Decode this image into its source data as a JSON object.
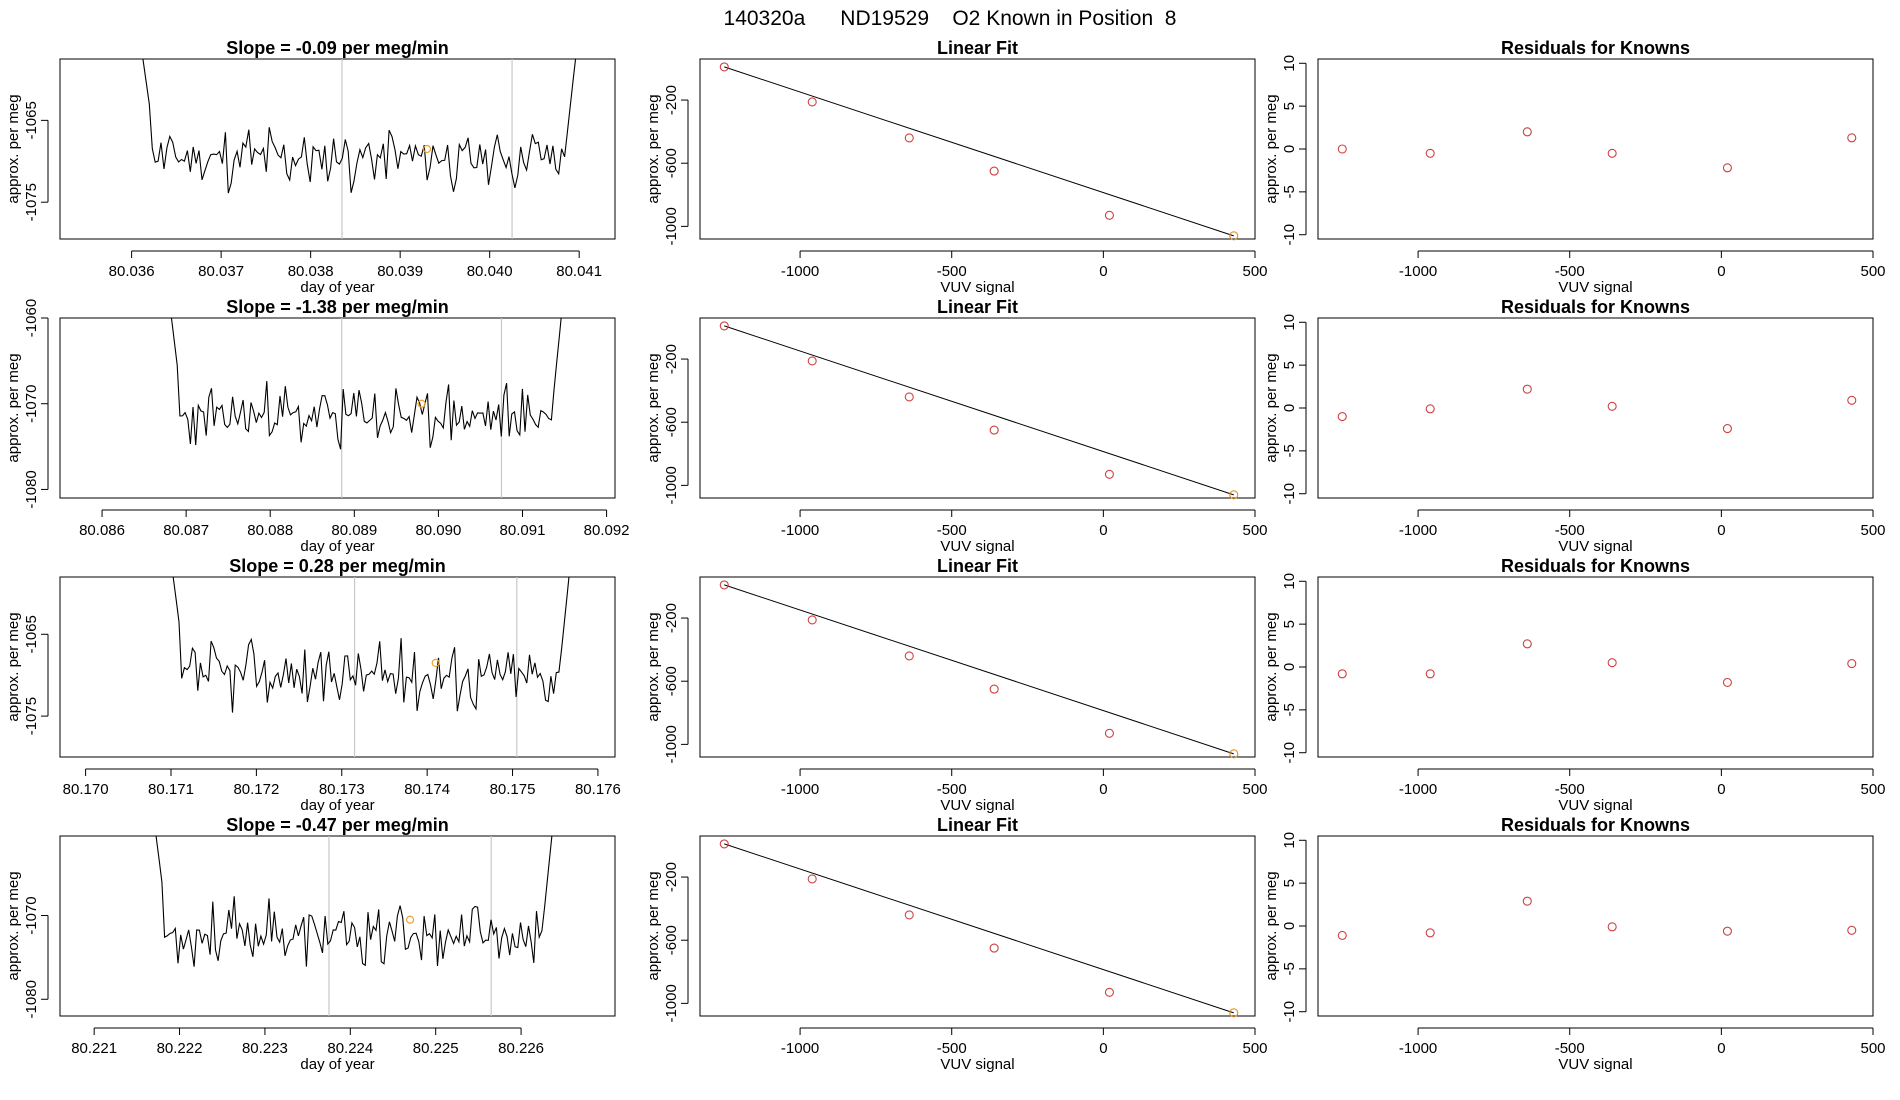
{
  "figure_title": "140320a      ND19529    O2 Known in Position  8",
  "chart_data": [
    {
      "row": 0,
      "timeseries": {
        "type": "line",
        "title": "Slope =  -0.09  per meg/min",
        "xlabel": "day of year",
        "ylabel": "approx. per meg",
        "xlim": [
          80.0352,
          80.0414
        ],
        "ylim": [
          -1079.5,
          -1057.5
        ],
        "xticks": [
          80.036,
          80.037,
          80.038,
          80.039,
          80.04,
          80.041
        ],
        "xtick_labels": [
          "80.036",
          "80.037",
          "80.038",
          "80.039",
          "80.040",
          "80.041"
        ],
        "yticks": [
          -1065,
          -1075
        ],
        "ytick_labels": [
          "-1065",
          "-1075"
        ],
        "vlines": [
          80.03835,
          80.04025
        ],
        "x_start": 80.0361,
        "x_end": 80.041,
        "noise_seed": 11,
        "highlight_point": {
          "x": 80.0393,
          "y": -1068.5
        }
      },
      "linear_fit": {
        "type": "scatter",
        "title": "Linear Fit",
        "xlabel": "VUV signal",
        "ylabel": "approx. per meg",
        "xlim": [
          -1330,
          500
        ],
        "ylim": [
          -1080,
          60
        ],
        "xticks": [
          -1000,
          -500,
          0,
          500
        ],
        "xtick_labels": [
          "-1000",
          "-500",
          "0",
          "500"
        ],
        "yticks": [
          -200,
          -600,
          -1000
        ],
        "ytick_labels": [
          "-200",
          "-600",
          "-1000"
        ],
        "x": [
          -1250,
          -960,
          -640,
          -360,
          20,
          430
        ],
        "y": [
          10,
          -212,
          -440,
          -650,
          -930,
          -1060
        ],
        "fit_line": {
          "x": [
            -1250,
            430
          ],
          "y": [
            10,
            -1060
          ]
        }
      },
      "residuals": {
        "type": "scatter",
        "title": "Residuals for Knowns",
        "xlabel": "VUV signal",
        "ylabel": "approx. per meg",
        "xlim": [
          -1330,
          500
        ],
        "ylim": [
          -10.5,
          10.5
        ],
        "xticks": [
          -1000,
          -500,
          0,
          500
        ],
        "xtick_labels": [
          "-1000",
          "-500",
          "0",
          "500"
        ],
        "yticks": [
          10,
          5,
          0,
          -5,
          -10
        ],
        "ytick_labels": [
          "10",
          "5",
          "0",
          "-5",
          "-10"
        ],
        "x": [
          -1250,
          -960,
          -640,
          -360,
          20,
          430
        ],
        "y": [
          0.0,
          -0.5,
          2.0,
          -0.5,
          -2.2,
          1.3
        ]
      }
    },
    {
      "row": 1,
      "timeseries": {
        "type": "line",
        "title": "Slope =  -1.38  per meg/min",
        "xlabel": "day of year",
        "ylabel": "approx. per meg",
        "xlim": [
          80.0855,
          80.0921
        ],
        "ylim": [
          -1081,
          -1060
        ],
        "xticks": [
          80.086,
          80.087,
          80.088,
          80.089,
          80.09,
          80.091,
          80.092
        ],
        "xtick_labels": [
          "80.086",
          "80.087",
          "80.088",
          "80.089",
          "80.090",
          "80.091",
          "80.092"
        ],
        "yticks": [
          -1060,
          -1070,
          -1080
        ],
        "ytick_labels": [
          "-1060",
          "-1070",
          "-1080"
        ],
        "vlines": [
          80.08885,
          80.09075
        ],
        "x_start": 80.0868,
        "x_end": 80.0915,
        "noise_seed": 23,
        "highlight_point": {
          "x": 80.0898,
          "y": -1070
        }
      },
      "linear_fit": {
        "type": "scatter",
        "title": "Linear Fit",
        "xlabel": "VUV signal",
        "ylabel": "approx. per meg",
        "xlim": [
          -1330,
          500
        ],
        "ylim": [
          -1080,
          60
        ],
        "xticks": [
          -1000,
          -500,
          0,
          500
        ],
        "xtick_labels": [
          "-1000",
          "-500",
          "0",
          "500"
        ],
        "yticks": [
          -200,
          -600,
          -1000
        ],
        "ytick_labels": [
          "-200",
          "-600",
          "-1000"
        ],
        "x": [
          -1250,
          -960,
          -640,
          -360,
          20,
          430
        ],
        "y": [
          10,
          -212,
          -440,
          -650,
          -930,
          -1060
        ],
        "fit_line": {
          "x": [
            -1250,
            430
          ],
          "y": [
            10,
            -1060
          ]
        }
      },
      "residuals": {
        "type": "scatter",
        "title": "Residuals for Knowns",
        "xlabel": "VUV signal",
        "ylabel": "approx. per meg",
        "xlim": [
          -1330,
          500
        ],
        "ylim": [
          -10.5,
          10.5
        ],
        "xticks": [
          -1000,
          -500,
          0,
          500
        ],
        "xtick_labels": [
          "-1000",
          "-500",
          "0",
          "500"
        ],
        "yticks": [
          10,
          5,
          0,
          -5,
          -10
        ],
        "ytick_labels": [
          "10",
          "5",
          "0",
          "-5",
          "-10"
        ],
        "x": [
          -1250,
          -960,
          -640,
          -360,
          20,
          430
        ],
        "y": [
          -1.0,
          -0.1,
          2.2,
          0.2,
          -2.4,
          0.9
        ]
      }
    },
    {
      "row": 2,
      "timeseries": {
        "type": "line",
        "title": "Slope =  0.28  per meg/min",
        "xlabel": "day of year",
        "ylabel": "approx. per meg",
        "xlim": [
          80.1697,
          80.1762
        ],
        "ylim": [
          -1080,
          -1058
        ],
        "xticks": [
          80.17,
          80.171,
          80.172,
          80.173,
          80.174,
          80.175,
          80.176
        ],
        "xtick_labels": [
          "80.170",
          "80.171",
          "80.172",
          "80.173",
          "80.174",
          "80.175",
          "80.176"
        ],
        "yticks": [
          -1065,
          -1075
        ],
        "ytick_labels": [
          "-1065",
          "-1075"
        ],
        "vlines": [
          80.17315,
          80.17505
        ],
        "x_start": 80.171,
        "x_end": 80.1757,
        "noise_seed": 37,
        "highlight_point": {
          "x": 80.1741,
          "y": -1068.5
        }
      },
      "linear_fit": {
        "type": "scatter",
        "title": "Linear Fit",
        "xlabel": "VUV signal",
        "ylabel": "approx. per meg",
        "xlim": [
          -1330,
          500
        ],
        "ylim": [
          -1080,
          60
        ],
        "xticks": [
          -1000,
          -500,
          0,
          500
        ],
        "xtick_labels": [
          "-1000",
          "-500",
          "0",
          "500"
        ],
        "yticks": [
          -200,
          -600,
          -1000
        ],
        "ytick_labels": [
          "-200",
          "-600",
          "-1000"
        ],
        "x": [
          -1250,
          -960,
          -640,
          -360,
          20,
          430
        ],
        "y": [
          10,
          -212,
          -440,
          -650,
          -930,
          -1060
        ],
        "fit_line": {
          "x": [
            -1250,
            430
          ],
          "y": [
            10,
            -1060
          ]
        }
      },
      "residuals": {
        "type": "scatter",
        "title": "Residuals for Knowns",
        "xlabel": "VUV signal",
        "ylabel": "approx. per meg",
        "xlim": [
          -1330,
          500
        ],
        "ylim": [
          -10.5,
          10.5
        ],
        "xticks": [
          -1000,
          -500,
          0,
          500
        ],
        "xtick_labels": [
          "-1000",
          "-500",
          "0",
          "500"
        ],
        "yticks": [
          10,
          5,
          0,
          -5,
          -10
        ],
        "ytick_labels": [
          "10",
          "5",
          "0",
          "-5",
          "-10"
        ],
        "x": [
          -1250,
          -960,
          -640,
          -360,
          20,
          430
        ],
        "y": [
          -0.8,
          -0.8,
          2.7,
          0.5,
          -1.8,
          0.4
        ]
      }
    },
    {
      "row": 3,
      "timeseries": {
        "type": "line",
        "title": "Slope =  -0.47  per meg/min",
        "xlabel": "day of year",
        "ylabel": "approx. per meg",
        "xlim": [
          80.2206,
          80.2271
        ],
        "ylim": [
          -1082,
          -1060.5
        ],
        "xticks": [
          80.221,
          80.222,
          80.223,
          80.224,
          80.225,
          80.226
        ],
        "xtick_labels": [
          "80.221",
          "80.222",
          "80.223",
          "80.224",
          "80.225",
          "80.226"
        ],
        "yticks": [
          -1070,
          -1080
        ],
        "ytick_labels": [
          "-1070",
          "-1080"
        ],
        "vlines": [
          80.22375,
          80.22565
        ],
        "x_start": 80.2217,
        "x_end": 80.2264,
        "noise_seed": 53,
        "highlight_point": {
          "x": 80.2247,
          "y": -1070.5
        }
      },
      "linear_fit": {
        "type": "scatter",
        "title": "Linear Fit",
        "xlabel": "VUV signal",
        "ylabel": "approx. per meg",
        "xlim": [
          -1330,
          500
        ],
        "ylim": [
          -1080,
          60
        ],
        "xticks": [
          -1000,
          -500,
          0,
          500
        ],
        "xtick_labels": [
          "-1000",
          "-500",
          "0",
          "500"
        ],
        "yticks": [
          -200,
          -600,
          -1000
        ],
        "ytick_labels": [
          "-200",
          "-600",
          "-1000"
        ],
        "x": [
          -1250,
          -960,
          -640,
          -360,
          20,
          430
        ],
        "y": [
          10,
          -212,
          -440,
          -650,
          -930,
          -1060
        ],
        "fit_line": {
          "x": [
            -1250,
            430
          ],
          "y": [
            10,
            -1060
          ]
        }
      },
      "residuals": {
        "type": "scatter",
        "title": "Residuals for Knowns",
        "xlabel": "VUV signal",
        "ylabel": "approx. per meg",
        "xlim": [
          -1330,
          500
        ],
        "ylim": [
          -10.5,
          10.5
        ],
        "xticks": [
          -1000,
          -500,
          0,
          500
        ],
        "xtick_labels": [
          "-1000",
          "-500",
          "0",
          "500"
        ],
        "yticks": [
          10,
          5,
          0,
          -5,
          -10
        ],
        "ytick_labels": [
          "10",
          "5",
          "0",
          "-5",
          "-10"
        ],
        "x": [
          -1250,
          -960,
          -640,
          -360,
          20,
          430
        ],
        "y": [
          -1.1,
          -0.8,
          2.9,
          -0.1,
          -0.6,
          -0.5
        ]
      }
    }
  ]
}
